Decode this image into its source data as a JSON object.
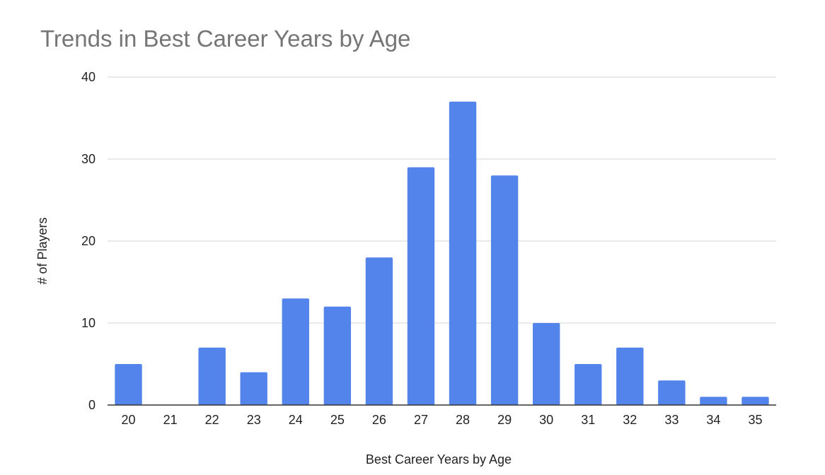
{
  "chart_data": {
    "type": "bar",
    "title": "Trends in Best Career Years by Age",
    "xlabel": "Best Career Years by Age",
    "ylabel": "# of Players",
    "categories": [
      "20",
      "21",
      "22",
      "23",
      "24",
      "25",
      "26",
      "27",
      "28",
      "29",
      "30",
      "31",
      "32",
      "33",
      "34",
      "35"
    ],
    "values": [
      5,
      0,
      7,
      4,
      13,
      12,
      18,
      29,
      37,
      28,
      10,
      5,
      7,
      3,
      1,
      1
    ],
    "ylim": [
      0,
      40
    ],
    "yticks": [
      0,
      10,
      20,
      30,
      40
    ],
    "grid": true,
    "legend": "none",
    "colors": {
      "bar": "#5384ec",
      "grid": "#d5d5d5",
      "axis": "#333333",
      "title": "#757575",
      "text": "#222222"
    }
  }
}
